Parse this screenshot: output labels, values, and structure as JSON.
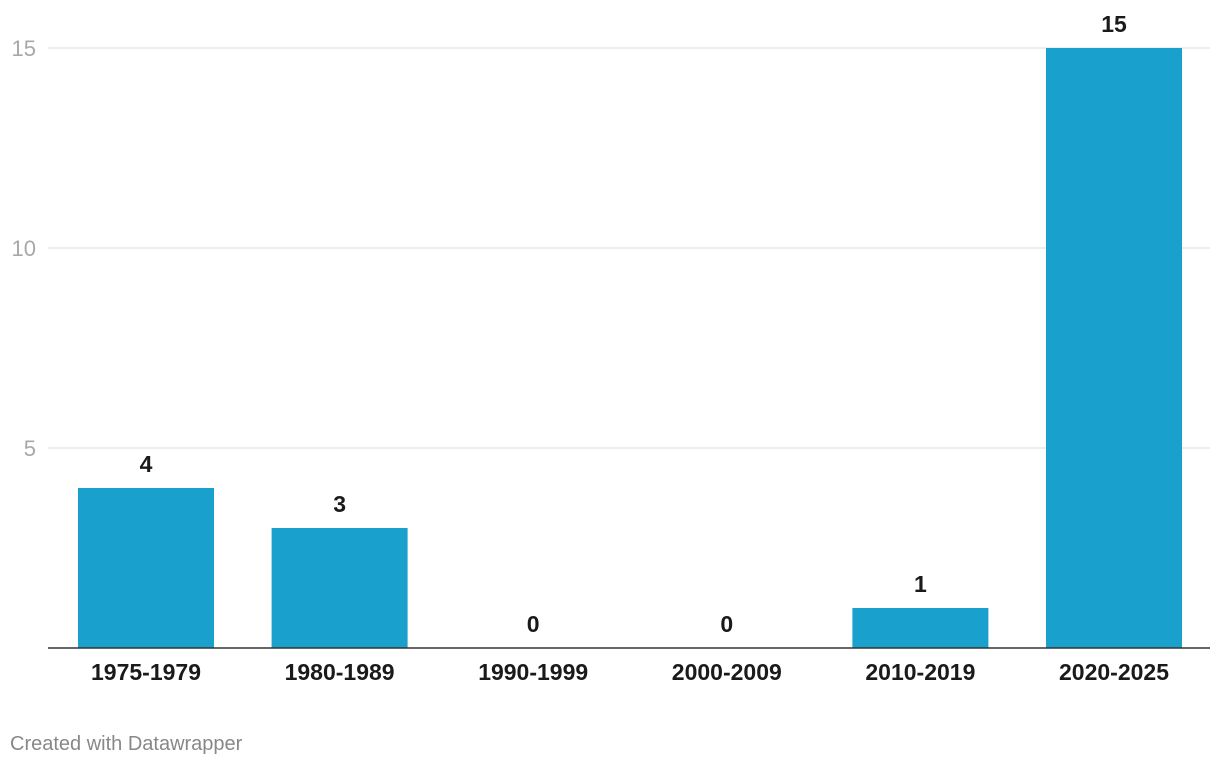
{
  "chart_data": {
    "type": "bar",
    "categories": [
      "1975-1979",
      "1980-1989",
      "1990-1999",
      "2000-2009",
      "2010-2019",
      "2020-2025"
    ],
    "values": [
      4,
      3,
      0,
      0,
      1,
      15
    ],
    "data_labels": [
      "4",
      "3",
      "0",
      "0",
      "1",
      "15"
    ],
    "ylim": [
      0,
      15
    ],
    "y_ticks": [
      5,
      10,
      15
    ],
    "y_tick_labels": [
      "5",
      "10",
      "15"
    ],
    "grid": true,
    "bar_color": "#1aa0cc",
    "title": "",
    "xlabel": "",
    "ylabel": ""
  },
  "credit": "Created with Datawrapper"
}
